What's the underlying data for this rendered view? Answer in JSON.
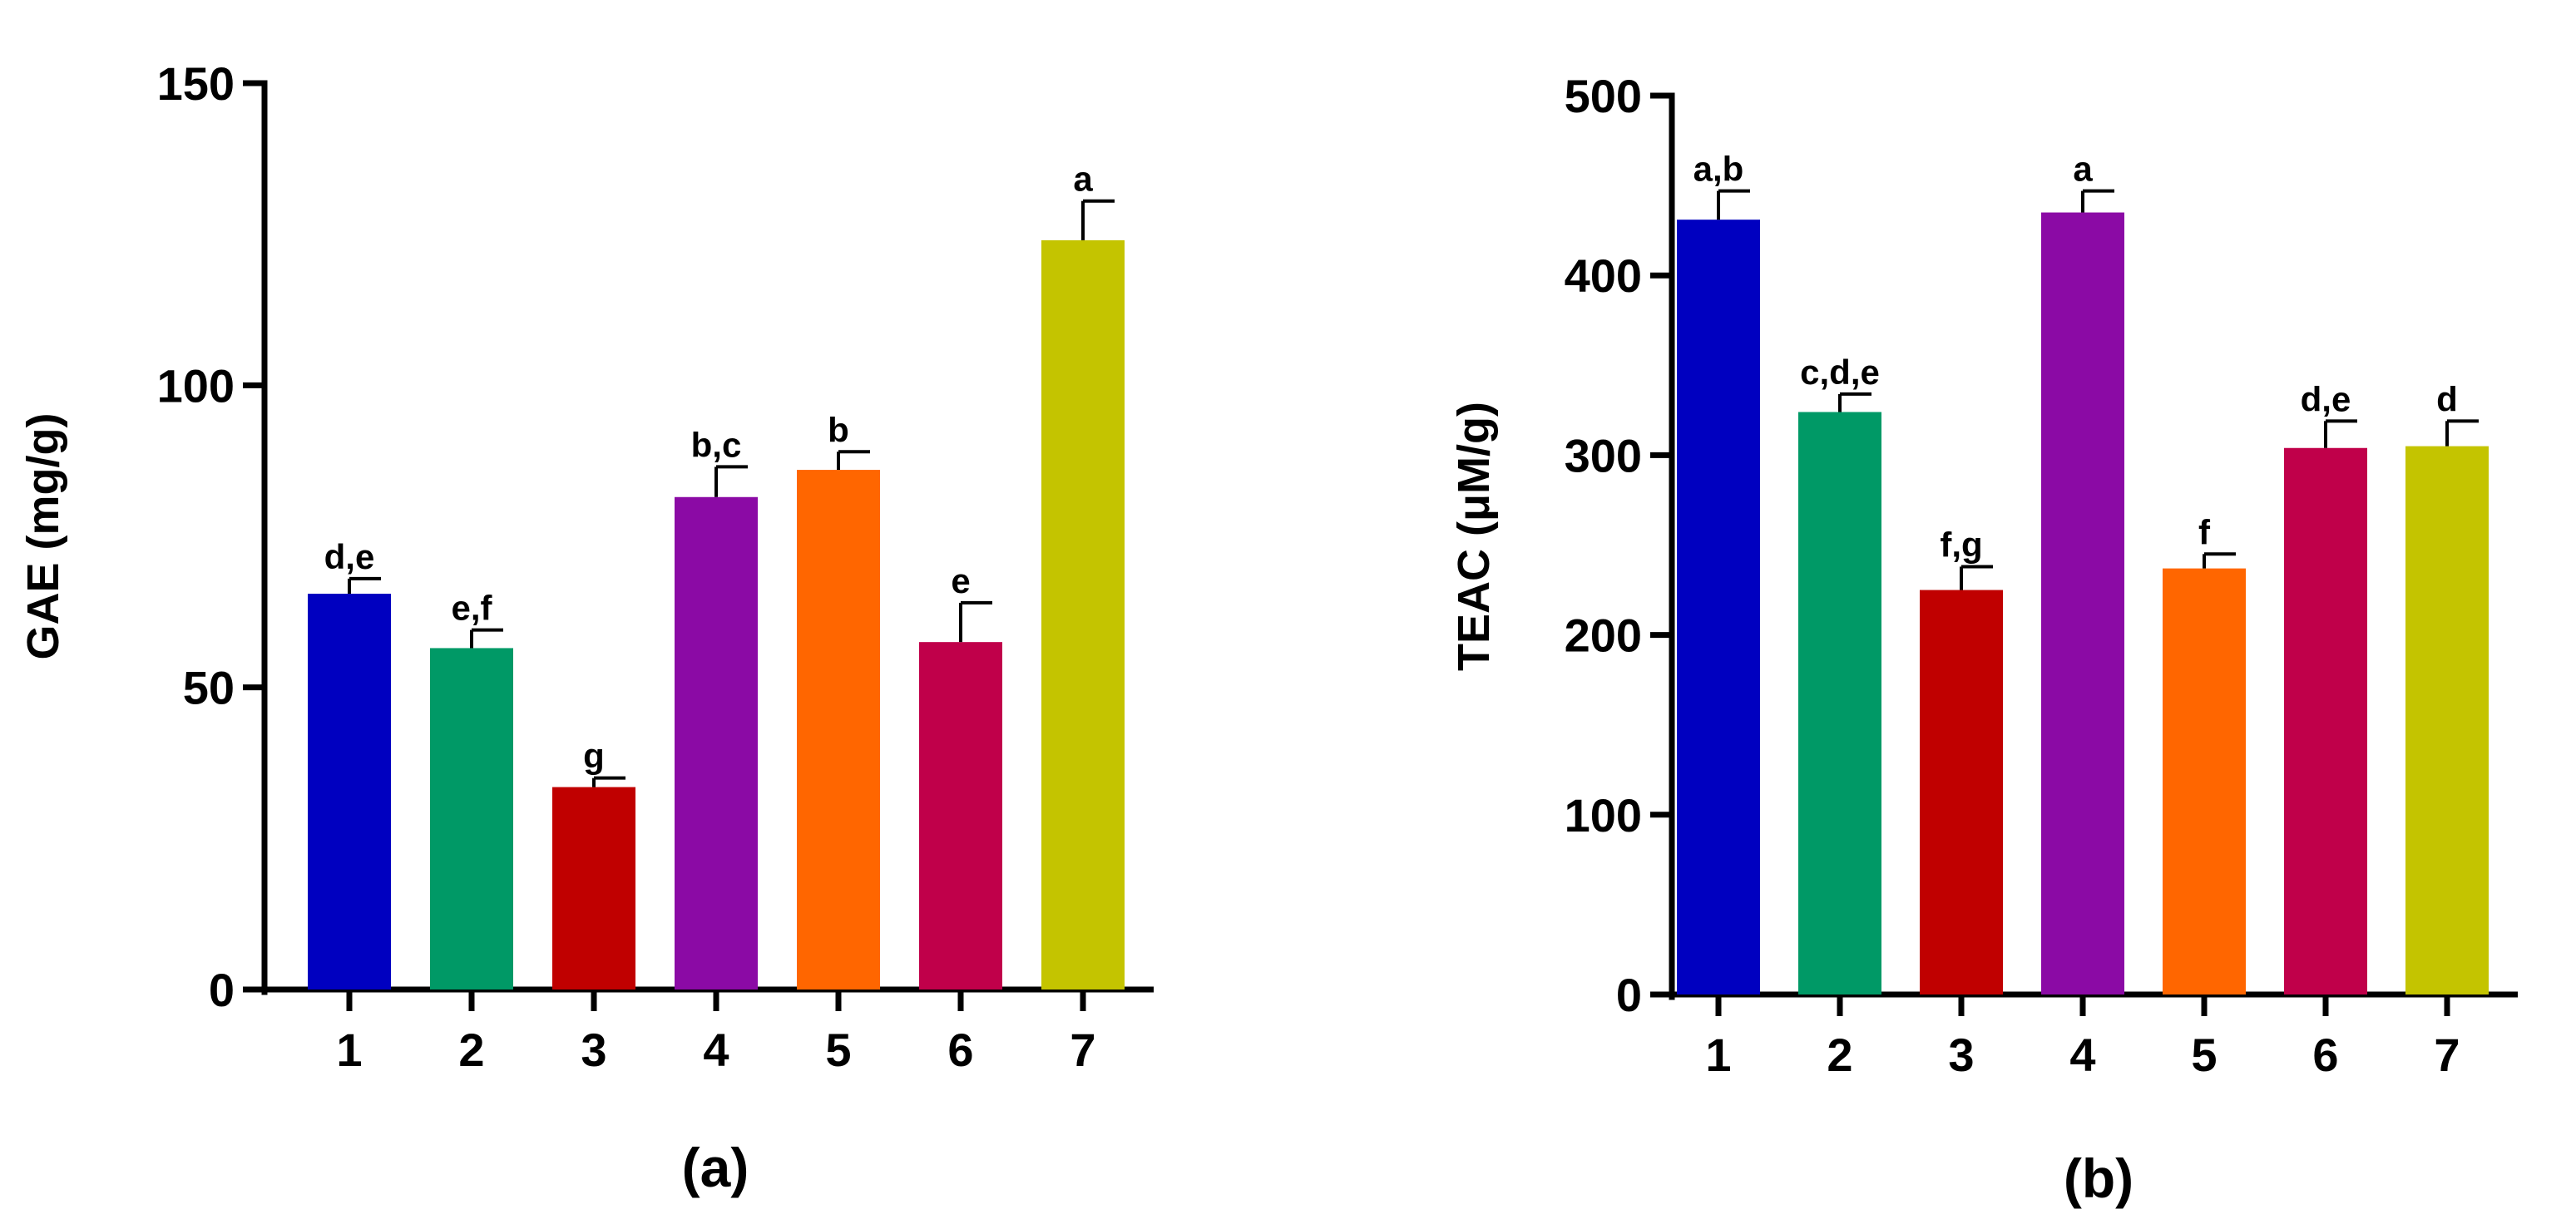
{
  "chart_data": [
    {
      "type": "bar",
      "panel_label": "(a)",
      "title": "",
      "xlabel": "",
      "ylabel": "GAE (mg/g)",
      "ylim": [
        0,
        150
      ],
      "yticks": [
        0,
        50,
        100,
        150
      ],
      "categories": [
        "1",
        "2",
        "3",
        "4",
        "5",
        "6",
        "7"
      ],
      "values": [
        65.5,
        56.5,
        33.5,
        81.5,
        86.0,
        57.5,
        124.0
      ],
      "errors": [
        2.5,
        3.0,
        1.5,
        5.0,
        3.0,
        6.5,
        6.5
      ],
      "labels": [
        "d,e",
        "e,f",
        "g",
        "b,c",
        "b",
        "e",
        "a"
      ],
      "colors": [
        "#0000c0",
        "#009966",
        "#c00000",
        "#8b0aa5",
        "#ff6600",
        "#c0004a",
        "#c4c400"
      ],
      "grid": false
    },
    {
      "type": "bar",
      "panel_label": "(b)",
      "title": "",
      "xlabel": "",
      "ylabel": "TEAC (μM/g)",
      "ylim": [
        0,
        500
      ],
      "yticks": [
        0,
        100,
        200,
        300,
        400,
        500
      ],
      "categories": [
        "1",
        "2",
        "3",
        "4",
        "5",
        "6",
        "7"
      ],
      "values": [
        431,
        324,
        225,
        435,
        237,
        304,
        305
      ],
      "errors": [
        16,
        10,
        13,
        12,
        8,
        15,
        14
      ],
      "labels": [
        "a,b",
        "c,d,e",
        "f,g",
        "a",
        "f",
        "d,e",
        "d"
      ],
      "colors": [
        "#0000c0",
        "#009966",
        "#c00000",
        "#8b0aa5",
        "#ff6600",
        "#c0004a",
        "#c4c400"
      ],
      "grid": false
    }
  ]
}
